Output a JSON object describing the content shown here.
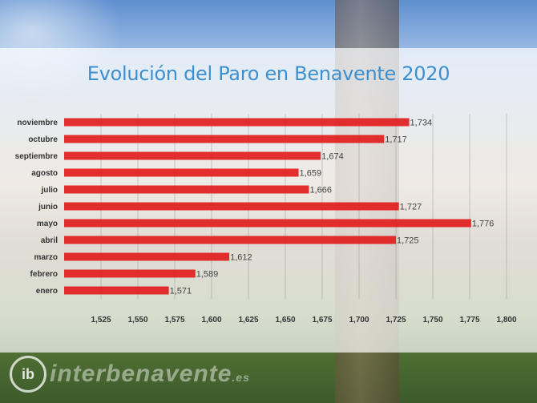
{
  "chart_data": {
    "type": "bar",
    "orientation": "horizontal",
    "title": "Evolución del Paro en Benavente 2020",
    "categories": [
      "noviembre",
      "octubre",
      "septiembre",
      "agosto",
      "julio",
      "junio",
      "mayo",
      "abril",
      "marzo",
      "febrero",
      "enero"
    ],
    "values": [
      1734,
      1717,
      1674,
      1659,
      1666,
      1727,
      1776,
      1725,
      1612,
      1589,
      1571
    ],
    "value_labels": [
      "1,734",
      "1,717",
      "1,674",
      "1,659",
      "1,666",
      "1,727",
      "1,776",
      "1,725",
      "1,612",
      "1,589",
      "1,571"
    ],
    "xlim": [
      1500,
      1800
    ],
    "xticks": [
      1525,
      1550,
      1575,
      1600,
      1625,
      1650,
      1675,
      1700,
      1725,
      1750,
      1775,
      1800
    ],
    "xtick_labels": [
      "1,525",
      "1,550",
      "1,575",
      "1,600",
      "1,625",
      "1,650",
      "1,675",
      "1,700",
      "1,725",
      "1,750",
      "1,775",
      "1,800"
    ],
    "xlabel": "",
    "ylabel": "",
    "bar_color": "#e11d1d",
    "gridlines": true
  },
  "watermark": {
    "logo_text": "ib",
    "text": "interbenavente",
    "suffix": ".es"
  },
  "colors": {
    "title": "#3d8fd0",
    "bar": "#e11d1d"
  }
}
